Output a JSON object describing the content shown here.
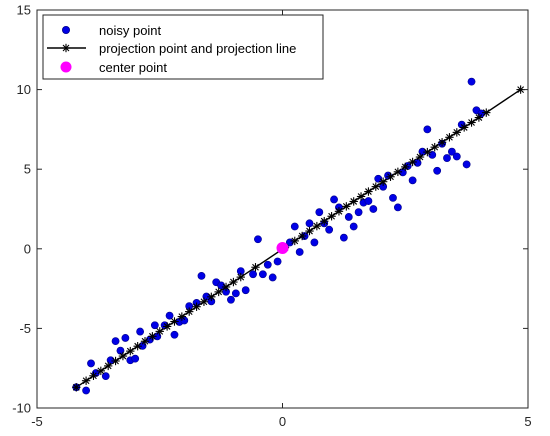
{
  "chart_data": {
    "type": "scatter",
    "xlim": [
      -5,
      5
    ],
    "ylim": [
      -10,
      15
    ],
    "x_ticks": [
      -5,
      0,
      5
    ],
    "y_ticks": [
      -10,
      -5,
      0,
      5,
      10,
      15
    ],
    "x_tick_labels": [
      "-5",
      "0",
      "5"
    ],
    "y_tick_labels": [
      "-10",
      "-5",
      "0",
      "5",
      "10",
      "15"
    ],
    "grid": false,
    "legend_position": "top-left",
    "colors": {
      "noisy": "#0000e6",
      "projection": "#000000",
      "center": "#ff00ff",
      "axes": "#262626"
    },
    "series": [
      {
        "name": "noisy point",
        "marker": "circle",
        "points": [
          [
            -4.2,
            -8.7
          ],
          [
            -4.0,
            -8.9
          ],
          [
            -3.9,
            -7.2
          ],
          [
            -3.8,
            -7.8
          ],
          [
            -3.6,
            -8.0
          ],
          [
            -3.5,
            -7.0
          ],
          [
            -3.4,
            -5.8
          ],
          [
            -3.3,
            -6.4
          ],
          [
            -3.2,
            -5.6
          ],
          [
            -3.1,
            -7.0
          ],
          [
            -3.0,
            -6.9
          ],
          [
            -2.9,
            -5.2
          ],
          [
            -2.85,
            -6.1
          ],
          [
            -2.7,
            -5.7
          ],
          [
            -2.6,
            -4.8
          ],
          [
            -2.55,
            -5.5
          ],
          [
            -2.4,
            -4.8
          ],
          [
            -2.3,
            -4.2
          ],
          [
            -2.2,
            -5.4
          ],
          [
            -2.1,
            -4.6
          ],
          [
            -2.0,
            -4.5
          ],
          [
            -1.9,
            -3.6
          ],
          [
            -1.75,
            -3.4
          ],
          [
            -1.65,
            -1.7
          ],
          [
            -1.55,
            -3.0
          ],
          [
            -1.45,
            -3.3
          ],
          [
            -1.35,
            -2.1
          ],
          [
            -1.25,
            -2.3
          ],
          [
            -1.15,
            -2.7
          ],
          [
            -1.05,
            -3.2
          ],
          [
            -0.95,
            -2.8
          ],
          [
            -0.85,
            -1.4
          ],
          [
            -0.75,
            -2.6
          ],
          [
            -0.6,
            -1.6
          ],
          [
            -0.5,
            0.6
          ],
          [
            -0.4,
            -1.6
          ],
          [
            -0.3,
            -1.0
          ],
          [
            -0.2,
            -1.8
          ],
          [
            -0.1,
            -0.8
          ],
          [
            0.05,
            0.1
          ],
          [
            0.15,
            0.4
          ],
          [
            0.25,
            1.4
          ],
          [
            0.35,
            -0.2
          ],
          [
            0.45,
            0.8
          ],
          [
            0.55,
            1.6
          ],
          [
            0.65,
            0.4
          ],
          [
            0.75,
            2.3
          ],
          [
            0.85,
            1.6
          ],
          [
            0.95,
            1.2
          ],
          [
            1.05,
            3.1
          ],
          [
            1.15,
            2.6
          ],
          [
            1.25,
            0.7
          ],
          [
            1.35,
            2.0
          ],
          [
            1.45,
            1.4
          ],
          [
            1.55,
            2.3
          ],
          [
            1.65,
            2.9
          ],
          [
            1.75,
            3.0
          ],
          [
            1.85,
            2.5
          ],
          [
            1.95,
            4.4
          ],
          [
            2.05,
            3.9
          ],
          [
            2.15,
            4.6
          ],
          [
            2.25,
            3.2
          ],
          [
            2.35,
            2.6
          ],
          [
            2.45,
            4.8
          ],
          [
            2.55,
            5.2
          ],
          [
            2.65,
            4.3
          ],
          [
            2.75,
            5.4
          ],
          [
            2.85,
            6.1
          ],
          [
            2.95,
            7.5
          ],
          [
            3.05,
            5.9
          ],
          [
            3.15,
            4.9
          ],
          [
            3.25,
            6.6
          ],
          [
            3.35,
            5.7
          ],
          [
            3.45,
            6.1
          ],
          [
            3.55,
            5.8
          ],
          [
            3.65,
            7.8
          ],
          [
            3.75,
            5.3
          ],
          [
            3.85,
            10.5
          ],
          [
            3.95,
            8.7
          ],
          [
            4.05,
            8.5
          ]
        ]
      },
      {
        "name": "projection point and projection line",
        "marker": "asterisk",
        "line": [
          [
            -4.2,
            -8.7
          ],
          [
            4.85,
            10.0
          ]
        ],
        "x": [
          -4.2,
          -4.0,
          -3.85,
          -3.7,
          -3.55,
          -3.4,
          -3.25,
          -3.1,
          -2.95,
          -2.8,
          -2.65,
          -2.5,
          -2.35,
          -2.2,
          -2.05,
          -1.9,
          -1.75,
          -1.6,
          -1.45,
          -1.3,
          -1.15,
          -1.0,
          -0.85,
          -0.55,
          0.05,
          0.25,
          0.4,
          0.55,
          0.7,
          0.85,
          1.0,
          1.15,
          1.3,
          1.45,
          1.6,
          1.75,
          1.9,
          2.05,
          2.2,
          2.35,
          2.5,
          2.65,
          2.8,
          2.95,
          3.1,
          3.25,
          3.4,
          3.55,
          3.7,
          3.85,
          4.0,
          4.15,
          4.85
        ]
      },
      {
        "name": "center point",
        "marker": "filled-circle",
        "points": [
          [
            0.0,
            0.05
          ]
        ]
      }
    ]
  }
}
